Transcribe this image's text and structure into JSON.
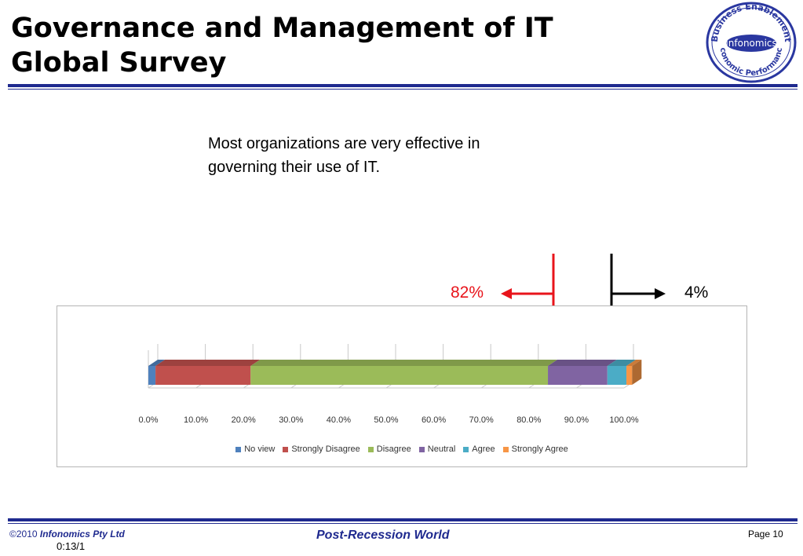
{
  "slide": {
    "title_line1": "Governance and Management of IT",
    "title_line2": "Global Survey",
    "headline": "Most organizations are very effective in governing their use of IT."
  },
  "logo": {
    "top_text": "Business Enablement",
    "center_text": "Infonomics",
    "bottom_text": "Economic Performance"
  },
  "callouts": {
    "left_label": "82%",
    "left_color": "#e8141b",
    "right_label": "4%",
    "right_color": "#000000"
  },
  "chart_data": {
    "type": "bar",
    "orientation": "horizontal",
    "stacked": true,
    "percent_stacked": true,
    "three_d": true,
    "categories": [
      ""
    ],
    "series": [
      {
        "name": "No view",
        "values": [
          1.5
        ],
        "color": "#4f81bd"
      },
      {
        "name": "Strongly Disagree",
        "values": [
          20
        ],
        "color": "#c0504d"
      },
      {
        "name": "Disagree",
        "values": [
          62.5
        ],
        "color": "#9bbb59"
      },
      {
        "name": "Neutral",
        "values": [
          12.5
        ],
        "color": "#8064a2"
      },
      {
        "name": "Agree",
        "values": [
          4
        ],
        "color": "#4bacc6"
      },
      {
        "name": "Strongly Agree",
        "values": [
          1.2
        ],
        "color": "#f79646"
      }
    ],
    "x_ticks": [
      "0.0%",
      "10.0%",
      "20.0%",
      "30.0%",
      "40.0%",
      "50.0%",
      "60.0%",
      "70.0%",
      "80.0%",
      "90.0%",
      "100.0%"
    ],
    "xlim": [
      0,
      100
    ],
    "grid": true,
    "legend_position": "bottom"
  },
  "footer": {
    "copyright": "©2010",
    "company": "Infonomics Pty Ltd",
    "code": "0:13/1",
    "center": "Post-Recession World",
    "page": "Page 10"
  },
  "colors": {
    "brand_blue": "#1f2a8f"
  }
}
